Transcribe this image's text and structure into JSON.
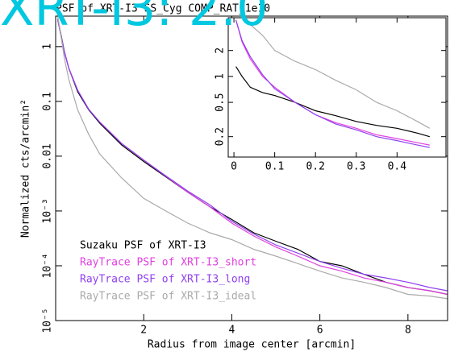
{
  "overlay_text": "XRT-I3: 2.0",
  "chart_data": [
    {
      "type": "line",
      "title": "PSF of XRT-I3 SS_Cyg COMP_RAT_1e10",
      "x_label": "Radius from image center [arcmin]",
      "y_label": "Normalized cts/arcmin²",
      "log_y": true,
      "legend": "lower left",
      "xlim": [
        0,
        8.9
      ],
      "ylim": [
        1e-05,
        3.6
      ],
      "xticks": [
        2,
        4,
        6,
        8
      ],
      "yticks": [
        {
          "value": 1e-05,
          "label": "10⁻⁵"
        },
        {
          "value": 0.0001,
          "label": "10⁻⁴"
        },
        {
          "value": 0.001,
          "label": "10⁻³"
        },
        0.01,
        0.1,
        1
      ],
      "x": [
        0.05,
        0.1,
        0.2,
        0.3,
        0.5,
        0.75,
        1,
        1.5,
        2,
        2.5,
        3,
        3.5,
        4,
        4.5,
        5,
        5.5,
        6,
        6.5,
        7,
        7.5,
        8,
        8.5,
        8.9
      ],
      "series": [
        {
          "name": "Suzaku PSF of XRT-I3",
          "color": "#000000",
          "values": [
            3.2,
            2.0,
            0.8,
            0.4,
            0.15,
            0.07,
            0.04,
            0.016,
            0.008,
            0.0042,
            0.0022,
            0.0012,
            0.0007,
            0.0004,
            0.00028,
            0.0002,
            0.00012,
            0.0001,
            7e-05,
            5e-05,
            4e-05,
            3.5e-05,
            3e-05
          ]
        },
        {
          "name": "RayTrace PSF of XRT-I3_short",
          "color": "#e040e0",
          "values": [
            3.0,
            1.9,
            0.78,
            0.4,
            0.16,
            0.072,
            0.042,
            0.017,
            0.0085,
            0.0043,
            0.0022,
            0.0012,
            0.0006,
            0.00035,
            0.00022,
            0.00015,
            0.0001,
            8e-05,
            6e-05,
            5e-05,
            4e-05,
            3.5e-05,
            3e-05
          ]
        },
        {
          "name": "RayTrace PSF of XRT-I3_long",
          "color": "#9040f0",
          "values": [
            3.0,
            1.9,
            0.78,
            0.4,
            0.16,
            0.072,
            0.042,
            0.017,
            0.0085,
            0.0044,
            0.0023,
            0.0013,
            0.00065,
            0.00038,
            0.00024,
            0.00017,
            0.00012,
            9e-05,
            7e-05,
            6e-05,
            5e-05,
            4e-05,
            3.5e-05
          ]
        },
        {
          "name": "RayTrace PSF of XRT-I3_ideal",
          "color": "#aaaaaa",
          "values": [
            3.5,
            2.0,
            0.6,
            0.25,
            0.07,
            0.025,
            0.011,
            0.004,
            0.0017,
            0.001,
            0.0006,
            0.0004,
            0.0003,
            0.0002,
            0.00015,
            0.00011,
            8e-05,
            6e-05,
            5e-05,
            4e-05,
            3e-05,
            2.8e-05,
            2.5e-05
          ]
        }
      ]
    },
    {
      "type": "line",
      "log_y": true,
      "xlim": [
        -0.014,
        0.52
      ],
      "ylim": [
        0.116,
        4.8
      ],
      "xticks": [
        0,
        0.1,
        0.2,
        0.3,
        0.4
      ],
      "yticks": [
        0.2,
        0.5,
        1,
        2
      ],
      "x": [
        0.005,
        0.02,
        0.04,
        0.07,
        0.1,
        0.15,
        0.2,
        0.25,
        0.3,
        0.35,
        0.4,
        0.45,
        0.48
      ],
      "series": [
        {
          "color": "#000000",
          "values": [
            1.3,
            1.0,
            0.75,
            0.65,
            0.6,
            0.5,
            0.4,
            0.35,
            0.3,
            0.27,
            0.25,
            0.22,
            0.2
          ]
        },
        {
          "color": "#e040e0",
          "values": [
            4.5,
            2.5,
            1.6,
            1.0,
            0.75,
            0.5,
            0.36,
            0.29,
            0.25,
            0.21,
            0.19,
            0.17,
            0.16
          ]
        },
        {
          "color": "#9040f0",
          "values": [
            4.5,
            2.6,
            1.7,
            1.05,
            0.72,
            0.5,
            0.36,
            0.28,
            0.24,
            0.2,
            0.18,
            0.16,
            0.15
          ]
        },
        {
          "color": "#aaaaaa",
          "values": [
            4.8,
            4.8,
            4.0,
            3.0,
            2.0,
            1.5,
            1.2,
            0.9,
            0.7,
            0.5,
            0.4,
            0.3,
            0.25
          ]
        }
      ]
    }
  ]
}
